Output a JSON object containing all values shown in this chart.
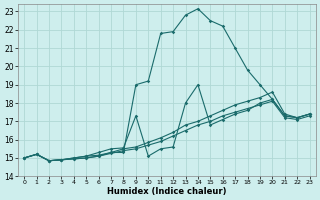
{
  "xlabel": "Humidex (Indice chaleur)",
  "background_color": "#ceeeed",
  "grid_color": "#b0d8d5",
  "line_color": "#1a6b6b",
  "xlim": [
    -0.5,
    23.5
  ],
  "ylim": [
    14,
    23.4
  ],
  "xticks": [
    0,
    1,
    2,
    3,
    4,
    5,
    6,
    7,
    8,
    9,
    10,
    11,
    12,
    13,
    14,
    15,
    16,
    17,
    18,
    19,
    20,
    21,
    22,
    23
  ],
  "yticks": [
    14,
    15,
    16,
    17,
    18,
    19,
    20,
    21,
    22,
    23
  ],
  "line_main_x": [
    0,
    1,
    2,
    3,
    4,
    5,
    6,
    7,
    8,
    9,
    10,
    11,
    12,
    13,
    14,
    15,
    16,
    17,
    18,
    19,
    20,
    21,
    22,
    23
  ],
  "line_main_y": [
    15.0,
    15.2,
    14.85,
    14.9,
    15.0,
    15.1,
    15.15,
    15.3,
    15.3,
    19.0,
    19.2,
    21.8,
    21.9,
    22.8,
    23.15,
    22.5,
    22.2,
    21.0,
    19.8,
    19.0,
    18.2,
    17.3,
    17.2,
    17.4
  ],
  "line_spike_x": [
    0,
    1,
    2,
    3,
    4,
    5,
    6,
    7,
    8,
    9,
    10,
    11,
    12,
    13,
    14,
    15,
    16,
    17,
    18,
    19,
    20,
    21,
    22,
    23
  ],
  "line_spike_y": [
    15.0,
    15.2,
    14.85,
    14.9,
    15.0,
    15.1,
    15.3,
    15.5,
    15.55,
    17.3,
    15.1,
    15.5,
    15.6,
    18.0,
    19.0,
    16.8,
    17.1,
    17.4,
    17.6,
    18.0,
    18.2,
    17.3,
    17.2,
    17.4
  ],
  "line_upper_x": [
    0,
    1,
    2,
    3,
    4,
    5,
    6,
    7,
    8,
    9,
    10,
    11,
    12,
    13,
    14,
    15,
    16,
    17,
    18,
    19,
    20,
    21,
    22,
    23
  ],
  "line_upper_y": [
    15.0,
    15.2,
    14.85,
    14.9,
    14.95,
    15.0,
    15.1,
    15.3,
    15.5,
    15.6,
    15.85,
    16.1,
    16.4,
    16.8,
    17.0,
    17.3,
    17.6,
    17.9,
    18.1,
    18.3,
    18.6,
    17.4,
    17.2,
    17.4
  ],
  "line_lower_x": [
    0,
    1,
    2,
    3,
    4,
    5,
    6,
    7,
    8,
    9,
    10,
    11,
    12,
    13,
    14,
    15,
    16,
    17,
    18,
    19,
    20,
    21,
    22,
    23
  ],
  "line_lower_y": [
    15.0,
    15.2,
    14.85,
    14.9,
    14.95,
    15.0,
    15.1,
    15.25,
    15.4,
    15.5,
    15.7,
    15.9,
    16.2,
    16.5,
    16.8,
    17.0,
    17.3,
    17.5,
    17.7,
    17.9,
    18.1,
    17.2,
    17.1,
    17.3
  ]
}
